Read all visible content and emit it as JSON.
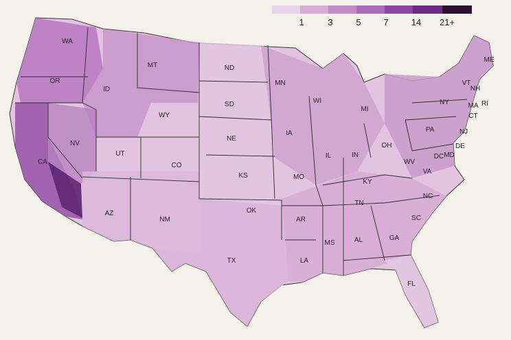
{
  "legend": {
    "bins": [
      {
        "color": "#ead3e8",
        "label": ""
      },
      {
        "color": "#d7abd6",
        "label": "1"
      },
      {
        "color": "#c28ac7",
        "label": "3"
      },
      {
        "color": "#ab69b8",
        "label": "5"
      },
      {
        "color": "#8f45a0",
        "label": "7"
      },
      {
        "color": "#6c2a80",
        "label": "14"
      },
      {
        "color": "#2e0f33",
        "label": "21+"
      }
    ]
  },
  "states": [
    {
      "abbr": "WA"
    },
    {
      "abbr": "OR"
    },
    {
      "abbr": "CA"
    },
    {
      "abbr": "ID"
    },
    {
      "abbr": "NV"
    },
    {
      "abbr": "MT"
    },
    {
      "abbr": "WY"
    },
    {
      "abbr": "UT"
    },
    {
      "abbr": "AZ"
    },
    {
      "abbr": "CO"
    },
    {
      "abbr": "NM"
    },
    {
      "abbr": "ND"
    },
    {
      "abbr": "SD"
    },
    {
      "abbr": "NE"
    },
    {
      "abbr": "KS"
    },
    {
      "abbr": "OK"
    },
    {
      "abbr": "TX"
    },
    {
      "abbr": "MN"
    },
    {
      "abbr": "IA"
    },
    {
      "abbr": "MO"
    },
    {
      "abbr": "AR"
    },
    {
      "abbr": "LA"
    },
    {
      "abbr": "WI"
    },
    {
      "abbr": "IL"
    },
    {
      "abbr": "MS"
    },
    {
      "abbr": "MI"
    },
    {
      "abbr": "IN"
    },
    {
      "abbr": "KY"
    },
    {
      "abbr": "TN"
    },
    {
      "abbr": "AL"
    },
    {
      "abbr": "OH"
    },
    {
      "abbr": "GA"
    },
    {
      "abbr": "FL"
    },
    {
      "abbr": "SC"
    },
    {
      "abbr": "NC"
    },
    {
      "abbr": "WV"
    },
    {
      "abbr": "VA"
    },
    {
      "abbr": "PA"
    },
    {
      "abbr": "NY"
    },
    {
      "abbr": "ME"
    },
    {
      "abbr": "VT"
    },
    {
      "abbr": "NH"
    },
    {
      "abbr": "MA"
    },
    {
      "abbr": "RI"
    },
    {
      "abbr": "CT"
    },
    {
      "abbr": "NJ"
    },
    {
      "abbr": "DE"
    },
    {
      "abbr": "MD"
    },
    {
      "abbr": "DC"
    }
  ]
}
